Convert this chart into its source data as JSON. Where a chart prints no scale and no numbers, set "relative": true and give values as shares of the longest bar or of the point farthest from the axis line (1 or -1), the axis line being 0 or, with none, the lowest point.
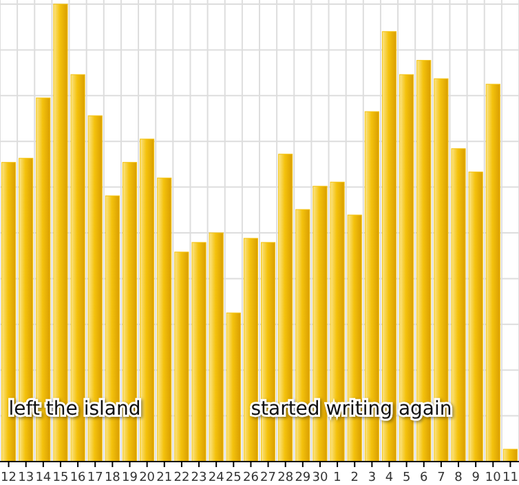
{
  "chart_data": {
    "type": "bar",
    "relative": true,
    "grid": true,
    "color": "#f4c20d",
    "categories": [
      "12",
      "13",
      "14",
      "15",
      "16",
      "17",
      "18",
      "19",
      "20",
      "21",
      "22",
      "23",
      "24",
      "25",
      "26",
      "27",
      "28",
      "29",
      "30",
      "1",
      "2",
      "3",
      "4",
      "5",
      "6",
      "7",
      "8",
      "9",
      "10",
      "11"
    ],
    "values": [
      0.654,
      0.663,
      0.795,
      1,
      0.846,
      0.756,
      0.581,
      0.654,
      0.705,
      0.62,
      0.458,
      0.479,
      0.5,
      0.325,
      0.488,
      0.479,
      0.672,
      0.551,
      0.602,
      0.611,
      0.539,
      0.765,
      0.94,
      0.846,
      0.877,
      0.837,
      0.684,
      0.633,
      0.825,
      0.027
    ],
    "annotations": [
      {
        "text": "left the island",
        "x": "12"
      },
      {
        "text": "started writing again",
        "x": "26"
      }
    ]
  }
}
